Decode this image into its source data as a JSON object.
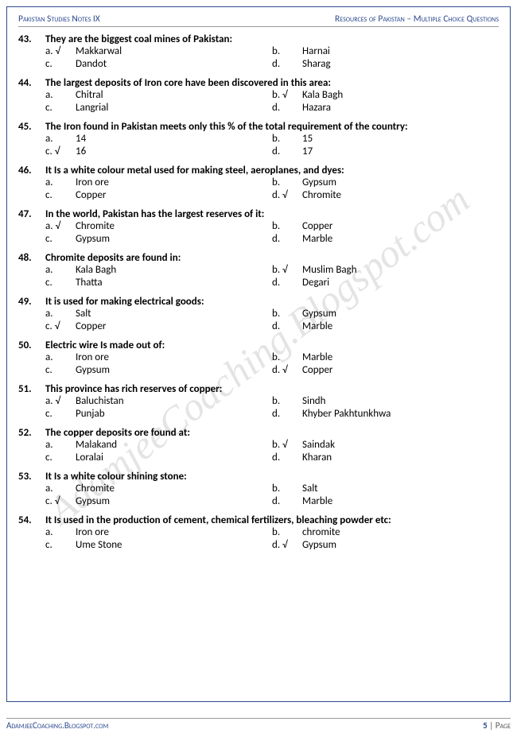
{
  "header": {
    "left": "Pakistan Studies Notes IX",
    "right": "Resources of Pakistan – Multiple Choice Questions"
  },
  "watermark": "AdamjeeCoaching.Blogspot.com",
  "footer": {
    "left": "AdamjeeCoaching.Blogspot.com",
    "page_num": "5",
    "page_label": " | Page"
  },
  "check": "√",
  "questions": [
    {
      "num": "43.",
      "text": "They are the biggest coal mines of Pakistan:",
      "options": [
        {
          "label": "a. √",
          "text": "Makkarwal"
        },
        {
          "label": "b.",
          "text": "Harnai"
        },
        {
          "label": "c.",
          "text": "Dandot"
        },
        {
          "label": "d.",
          "text": "Sharag"
        }
      ]
    },
    {
      "num": "44.",
      "text": "The largest deposits of Iron core have been discovered in this area:",
      "options": [
        {
          "label": "a.",
          "text": "Chitral"
        },
        {
          "label": "b. √",
          "text": "Kala Bagh"
        },
        {
          "label": "c.",
          "text": "Langrial"
        },
        {
          "label": "d.",
          "text": "Hazara"
        }
      ]
    },
    {
      "num": "45.",
      "text": "The Iron found in Pakistan meets only this % of the total requirement of the country:",
      "options": [
        {
          "label": "a.",
          "text": "14"
        },
        {
          "label": "b.",
          "text": "15"
        },
        {
          "label": "c. √",
          "text": "16"
        },
        {
          "label": "d.",
          "text": "17"
        }
      ]
    },
    {
      "num": "46.",
      "text": "It Is a white colour metal used for making steel, aeroplanes, and dyes:",
      "options": [
        {
          "label": "a.",
          "text": "Iron ore"
        },
        {
          "label": "b.",
          "text": "Gypsum"
        },
        {
          "label": "c.",
          "text": "Copper"
        },
        {
          "label": "d. √",
          "text": "Chromite"
        }
      ]
    },
    {
      "num": "47.",
      "text": "In the world, Pakistan has the largest reserves of it:",
      "options": [
        {
          "label": "a. √",
          "text": "Chromite"
        },
        {
          "label": "b.",
          "text": "Copper"
        },
        {
          "label": "c.",
          "text": "Gypsum"
        },
        {
          "label": "d.",
          "text": "Marble"
        }
      ]
    },
    {
      "num": "48.",
      "text": "Chromite deposits are found in:",
      "options": [
        {
          "label": "a.",
          "text": "Kala Bagh"
        },
        {
          "label": "b. √",
          "text": "Muslim Bagh"
        },
        {
          "label": "c.",
          "text": "Thatta"
        },
        {
          "label": "d.",
          "text": "Degari"
        }
      ]
    },
    {
      "num": "49.",
      "text": "It is used for making electrical goods:",
      "options": [
        {
          "label": "a.",
          "text": "Salt"
        },
        {
          "label": "b.",
          "text": "Gypsum"
        },
        {
          "label": "c. √",
          "text": "Copper"
        },
        {
          "label": "d.",
          "text": "Marble"
        }
      ]
    },
    {
      "num": "50.",
      "text": "Electric wire Is made out of:",
      "options": [
        {
          "label": "a.",
          "text": "Iron ore"
        },
        {
          "label": "b.",
          "text": "Marble"
        },
        {
          "label": "c.",
          "text": "Gypsum"
        },
        {
          "label": "d. √",
          "text": "Copper"
        }
      ]
    },
    {
      "num": "51.",
      "text": "This province has rich reserves of copper:",
      "options": [
        {
          "label": "a. √",
          "text": "Baluchistan"
        },
        {
          "label": "b.",
          "text": "Sindh"
        },
        {
          "label": "c.",
          "text": "Punjab"
        },
        {
          "label": "d.",
          "text": "Khyber Pakhtunkhwa"
        }
      ]
    },
    {
      "num": "52.",
      "text": "The copper deposits ore found at:",
      "options": [
        {
          "label": "a.",
          "text": "Malakand"
        },
        {
          "label": "b. √",
          "text": "Saindak"
        },
        {
          "label": "c.",
          "text": "Loralai"
        },
        {
          "label": "d.",
          "text": "Kharan"
        }
      ]
    },
    {
      "num": "53.",
      "text": "It Is a white colour shining stone:",
      "options": [
        {
          "label": "a.",
          "text": "Chromite"
        },
        {
          "label": "b.",
          "text": "Salt"
        },
        {
          "label": "c. √",
          "text": "Gypsum"
        },
        {
          "label": "d.",
          "text": "Marble"
        }
      ]
    },
    {
      "num": "54.",
      "text": "It Is used in the production of cement, chemical fertilizers, bleaching powder etc:",
      "options": [
        {
          "label": "a.",
          "text": "Iron ore"
        },
        {
          "label": "b.",
          "text": "chromite"
        },
        {
          "label": "c.",
          "text": "Ume Stone"
        },
        {
          "label": "d. √",
          "text": "Gypsum"
        }
      ]
    }
  ]
}
